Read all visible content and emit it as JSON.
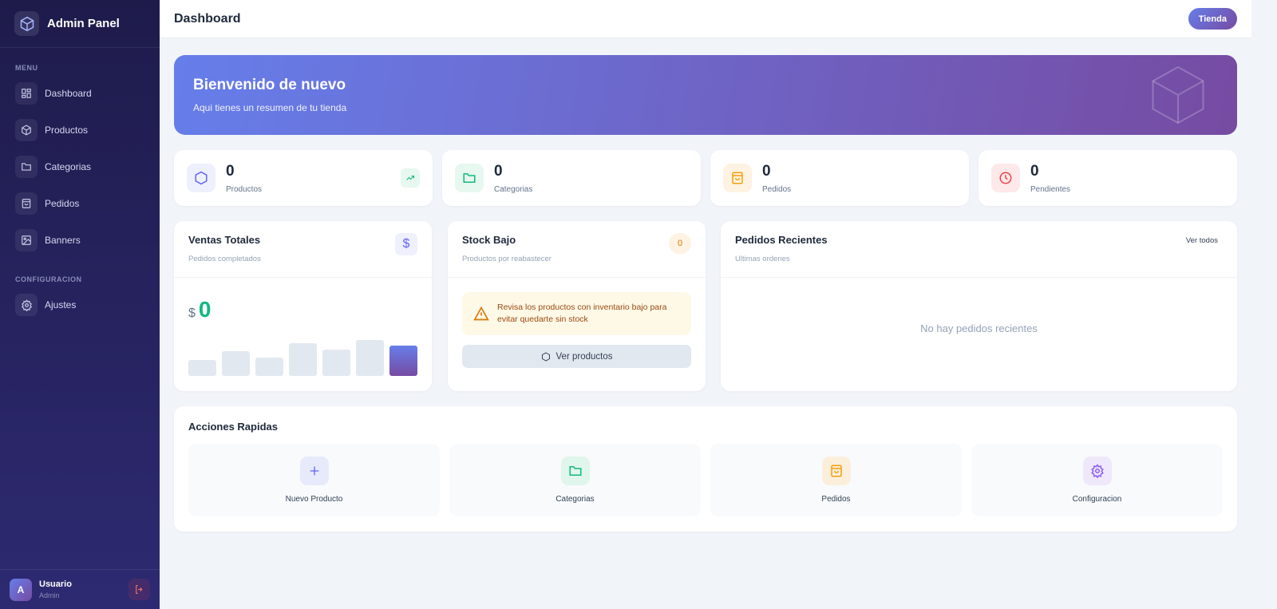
{
  "sidebar": {
    "title": "Admin Panel",
    "menu_label": "MENU",
    "config_label": "CONFIGURACION",
    "items": [
      {
        "label": "Dashboard",
        "icon": "grid-icon"
      },
      {
        "label": "Productos",
        "icon": "box-icon"
      },
      {
        "label": "Categorias",
        "icon": "folder-icon"
      },
      {
        "label": "Pedidos",
        "icon": "bag-icon"
      },
      {
        "label": "Banners",
        "icon": "image-icon"
      }
    ],
    "settings": {
      "label": "Ajustes",
      "icon": "gear-icon"
    },
    "user": {
      "initial": "A",
      "name": "Usuario",
      "role": "Admin"
    }
  },
  "header": {
    "title": "Dashboard",
    "store_button": "Tienda"
  },
  "banner": {
    "title": "Bienvenido de nuevo",
    "subtitle": "Aqui tienes un resumen de tu tienda"
  },
  "stats": [
    {
      "value": "0",
      "label": "Productos",
      "color": "#6366f1"
    },
    {
      "value": "0",
      "label": "Categorias",
      "color": "#10b981"
    },
    {
      "value": "0",
      "label": "Pedidos",
      "color": "#f59e0b"
    },
    {
      "value": "0",
      "label": "Pendientes",
      "color": "#ef4444"
    }
  ],
  "sales": {
    "title": "Ventas Totales",
    "subtitle": "Pedidos completados",
    "currency": "$",
    "amount": "0",
    "bars": [
      18,
      28,
      21,
      37,
      30,
      41,
      35
    ]
  },
  "stock": {
    "title": "Stock Bajo",
    "subtitle": "Productos por reabastecer",
    "count": "0",
    "warning": "Revisa los productos con inventario bajo para evitar quedarte sin stock",
    "button": "Ver productos"
  },
  "orders": {
    "title": "Pedidos Recientes",
    "subtitle": "Ultimas ordenes",
    "link": "Ver todos",
    "empty": "No hay pedidos recientes"
  },
  "quick": {
    "title": "Acciones Rapidas",
    "items": [
      {
        "label": "Nuevo Producto"
      },
      {
        "label": "Categorias"
      },
      {
        "label": "Pedidos"
      },
      {
        "label": "Configuracion"
      }
    ]
  }
}
